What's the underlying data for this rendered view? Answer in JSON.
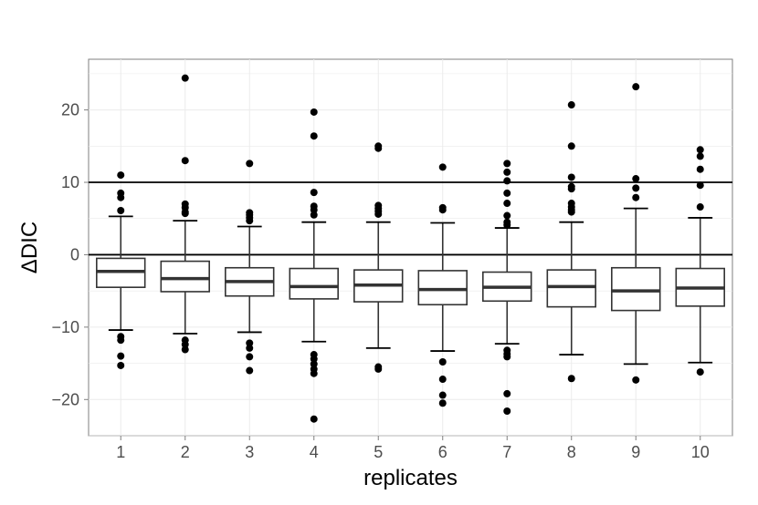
{
  "chart_data": {
    "type": "box",
    "xlabel": "replicates",
    "ylabel": "ΔDIC",
    "ylim": [
      -25,
      27
    ],
    "y_ticks": [
      -20,
      -10,
      0,
      10,
      20
    ],
    "y_tick_labels": [
      "−20",
      "−10",
      "0",
      "10",
      "20"
    ],
    "grid": true,
    "reference_lines": [
      0,
      10
    ],
    "categories": [
      "1",
      "2",
      "3",
      "4",
      "5",
      "6",
      "7",
      "8",
      "9",
      "10"
    ],
    "boxes": [
      {
        "category": "1",
        "whisker_low": -10.4,
        "q1": -4.5,
        "median": -2.3,
        "q3": -0.5,
        "whisker_high": 5.3,
        "outliers": [
          11.0,
          8.5,
          7.9,
          6.1,
          -11.3,
          -11.8,
          -14.0,
          -15.3
        ]
      },
      {
        "category": "2",
        "whisker_low": -10.9,
        "q1": -5.1,
        "median": -3.3,
        "q3": -0.9,
        "whisker_high": 4.7,
        "outliers": [
          24.4,
          13.0,
          7.0,
          6.5,
          5.9,
          5.7,
          -11.8,
          -12.4,
          -13.1
        ]
      },
      {
        "category": "3",
        "whisker_low": -10.7,
        "q1": -5.7,
        "median": -3.7,
        "q3": -1.8,
        "whisker_high": 3.9,
        "outliers": [
          12.6,
          5.8,
          5.5,
          5.1,
          4.7,
          -12.2,
          -12.9,
          -14.1,
          -16.0
        ]
      },
      {
        "category": "4",
        "whisker_low": -12.0,
        "q1": -6.1,
        "median": -4.4,
        "q3": -1.9,
        "whisker_high": 4.5,
        "outliers": [
          19.7,
          16.4,
          8.6,
          6.7,
          6.2,
          5.5,
          -13.8,
          -14.4,
          -15.1,
          -15.8,
          -16.4,
          -22.7
        ]
      },
      {
        "category": "5",
        "whisker_low": -12.9,
        "q1": -6.5,
        "median": -4.2,
        "q3": -2.1,
        "whisker_high": 4.5,
        "outliers": [
          15.0,
          14.7,
          6.8,
          6.4,
          6.0,
          5.6,
          -15.5,
          -15.8
        ]
      },
      {
        "category": "6",
        "whisker_low": -13.3,
        "q1": -6.9,
        "median": -4.8,
        "q3": -2.2,
        "whisker_high": 4.4,
        "outliers": [
          12.1,
          6.5,
          6.2,
          -14.8,
          -17.2,
          -19.4,
          -20.5
        ]
      },
      {
        "category": "7",
        "whisker_low": -12.3,
        "q1": -6.4,
        "median": -4.5,
        "q3": -2.4,
        "whisker_high": 3.7,
        "outliers": [
          12.6,
          11.4,
          10.2,
          8.5,
          7.1,
          5.4,
          4.5,
          4.1,
          -13.2,
          -13.7,
          -14.1,
          -19.2,
          -21.6
        ]
      },
      {
        "category": "8",
        "whisker_low": -13.8,
        "q1": -7.2,
        "median": -4.4,
        "q3": -2.1,
        "whisker_high": 4.5,
        "outliers": [
          20.7,
          15.0,
          10.7,
          9.4,
          9.1,
          7.1,
          6.6,
          6.2,
          5.9,
          -17.1
        ]
      },
      {
        "category": "9",
        "whisker_low": -15.1,
        "q1": -7.7,
        "median": -5.0,
        "q3": -1.8,
        "whisker_high": 6.4,
        "outliers": [
          23.2,
          10.5,
          9.2,
          7.9,
          -17.3
        ]
      },
      {
        "category": "10",
        "whisker_low": -14.9,
        "q1": -7.1,
        "median": -4.6,
        "q3": -1.9,
        "whisker_high": 5.1,
        "outliers": [
          14.5,
          13.6,
          11.8,
          9.6,
          6.6,
          -16.2
        ]
      }
    ]
  }
}
